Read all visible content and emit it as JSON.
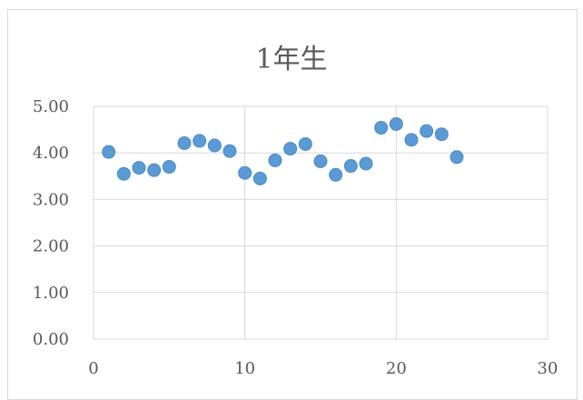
{
  "chart_data": {
    "type": "scatter",
    "title": "1年生",
    "xlabel": "",
    "ylabel": "",
    "xlim": [
      0,
      30
    ],
    "ylim": [
      0,
      5
    ],
    "x_ticks": [
      "0",
      "10",
      "20",
      "30"
    ],
    "y_ticks": [
      "0.00",
      "1.00",
      "2.00",
      "3.00",
      "4.00",
      "5.00"
    ],
    "grid": true,
    "legend": "none",
    "marker_color": "#5b9bd5",
    "points": [
      {
        "x": 1,
        "y": 4.02
      },
      {
        "x": 2,
        "y": 3.55
      },
      {
        "x": 3,
        "y": 3.68
      },
      {
        "x": 4,
        "y": 3.63
      },
      {
        "x": 5,
        "y": 3.7
      },
      {
        "x": 6,
        "y": 4.21
      },
      {
        "x": 7,
        "y": 4.26
      },
      {
        "x": 8,
        "y": 4.16
      },
      {
        "x": 9,
        "y": 4.04
      },
      {
        "x": 10,
        "y": 3.57
      },
      {
        "x": 11,
        "y": 3.45
      },
      {
        "x": 12,
        "y": 3.84
      },
      {
        "x": 13,
        "y": 4.09
      },
      {
        "x": 14,
        "y": 4.19
      },
      {
        "x": 15,
        "y": 3.82
      },
      {
        "x": 16,
        "y": 3.53
      },
      {
        "x": 17,
        "y": 3.72
      },
      {
        "x": 18,
        "y": 3.77
      },
      {
        "x": 19,
        "y": 4.54
      },
      {
        "x": 20,
        "y": 4.62
      },
      {
        "x": 21,
        "y": 4.28
      },
      {
        "x": 22,
        "y": 4.47
      },
      {
        "x": 23,
        "y": 4.4
      },
      {
        "x": 24,
        "y": 3.91
      }
    ]
  }
}
